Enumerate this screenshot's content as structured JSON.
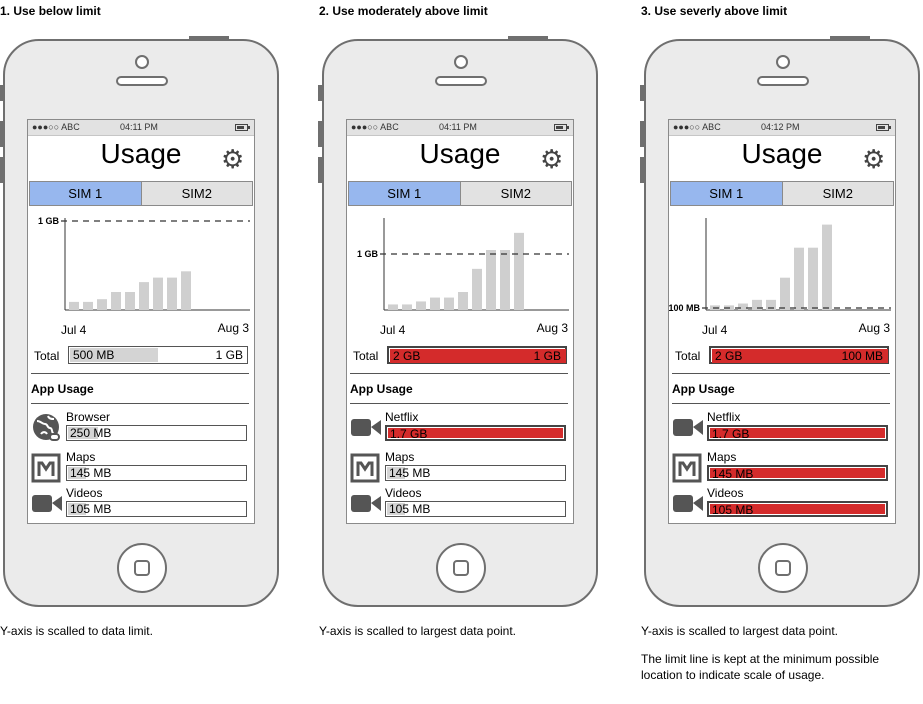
{
  "colors": {
    "accent_tab": "#97b7ee",
    "over_red": "#d42b2b",
    "bar_grey": "#cfcfcf",
    "under_fill": "#d4d4d4"
  },
  "icons": [
    "globe-icon",
    "maps-icon",
    "video-camera-icon",
    "gear-icon",
    "battery-icon"
  ],
  "panels": [
    {
      "title": "1. Use below limit",
      "status": {
        "carrier": "●●●○○ ABC",
        "time": "04:11 PM"
      },
      "screen_title": "Usage",
      "tabs": [
        "SIM 1",
        "SIM2"
      ],
      "chart": {
        "limit_label": "1 GB",
        "x_start": "Jul 4",
        "x_end": "Aug 3"
      },
      "total": {
        "label": "Total",
        "used": "500 MB",
        "limit": "1 GB",
        "fraction": 0.5,
        "over": false
      },
      "app_usage_title": "App Usage",
      "apps": [
        {
          "name": "Browser",
          "value": "250 MB",
          "icon": "globe-icon",
          "fraction": 0.25,
          "over": false
        },
        {
          "name": "Maps",
          "value": "145 MB",
          "icon": "maps-icon",
          "fraction": 0.145,
          "over": false
        },
        {
          "name": "Videos",
          "value": "105 MB",
          "icon": "video-camera-icon",
          "fraction": 0.105,
          "over": false
        }
      ],
      "caption": [
        "Y-axis is scalled to data limit."
      ]
    },
    {
      "title": "2. Use moderately above limit",
      "status": {
        "carrier": "●●●○○ ABC",
        "time": "04:11 PM"
      },
      "screen_title": "Usage",
      "tabs": [
        "SIM 1",
        "SIM2"
      ],
      "chart": {
        "limit_label": "1 GB",
        "x_start": "Jul 4",
        "x_end": "Aug 3"
      },
      "total": {
        "label": "Total",
        "used": "2 GB",
        "limit": "1 GB",
        "fraction": 1,
        "over": true
      },
      "app_usage_title": "App Usage",
      "apps": [
        {
          "name": "Netflix",
          "value": "1.7 GB",
          "icon": "video-camera-icon",
          "fraction": 1,
          "over": true
        },
        {
          "name": "Maps",
          "value": "145 MB",
          "icon": "maps-icon",
          "fraction": 0.145,
          "over": false
        },
        {
          "name": "Videos",
          "value": "105 MB",
          "icon": "video-camera-icon",
          "fraction": 0.105,
          "over": false
        }
      ],
      "caption": [
        "Y-axis is scalled to largest data point."
      ]
    },
    {
      "title": "3. Use severly above limit",
      "status": {
        "carrier": "●●●○○ ABC",
        "time": "04:12 PM"
      },
      "screen_title": "Usage",
      "tabs": [
        "SIM 1",
        "SIM2"
      ],
      "chart": {
        "limit_label": "100 MB",
        "x_start": "Jul 4",
        "x_end": "Aug 3"
      },
      "total": {
        "label": "Total",
        "used": "2 GB",
        "limit": "100 MB",
        "fraction": 1,
        "over": true
      },
      "app_usage_title": "App Usage",
      "apps": [
        {
          "name": "Netflix",
          "value": "1.7 GB",
          "icon": "video-camera-icon",
          "fraction": 1,
          "over": true
        },
        {
          "name": "Maps",
          "value": "145 MB",
          "icon": "maps-icon",
          "fraction": 1,
          "over": true
        },
        {
          "name": "Videos",
          "value": "105 MB",
          "icon": "video-camera-icon",
          "fraction": 1,
          "over": true
        }
      ],
      "caption": [
        "Y-axis is scalled to largest data point.",
        "The limit line is kept at the minimum possible location to indicate scale of usage."
      ]
    }
  ],
  "chart_data": [
    {
      "type": "bar",
      "y_unit": "GB",
      "limit": 1,
      "ylim": [
        0,
        1
      ],
      "values": [
        0.09,
        0.09,
        0.12,
        0.2,
        0.2,
        0.31,
        0.36,
        0.36,
        0.43
      ]
    },
    {
      "type": "bar",
      "y_unit": "GB",
      "limit": 1,
      "ylim": [
        0,
        2
      ],
      "values": [
        0.13,
        0.13,
        0.2,
        0.29,
        0.29,
        0.42,
        0.96,
        1.4,
        1.4,
        1.8
      ]
    },
    {
      "type": "bar",
      "y_unit": "GB",
      "limit": 0.1,
      "ylim": [
        0,
        2
      ],
      "values": [
        0.1,
        0.1,
        0.14,
        0.22,
        0.22,
        0.7,
        1.35,
        1.35,
        1.85
      ]
    }
  ]
}
